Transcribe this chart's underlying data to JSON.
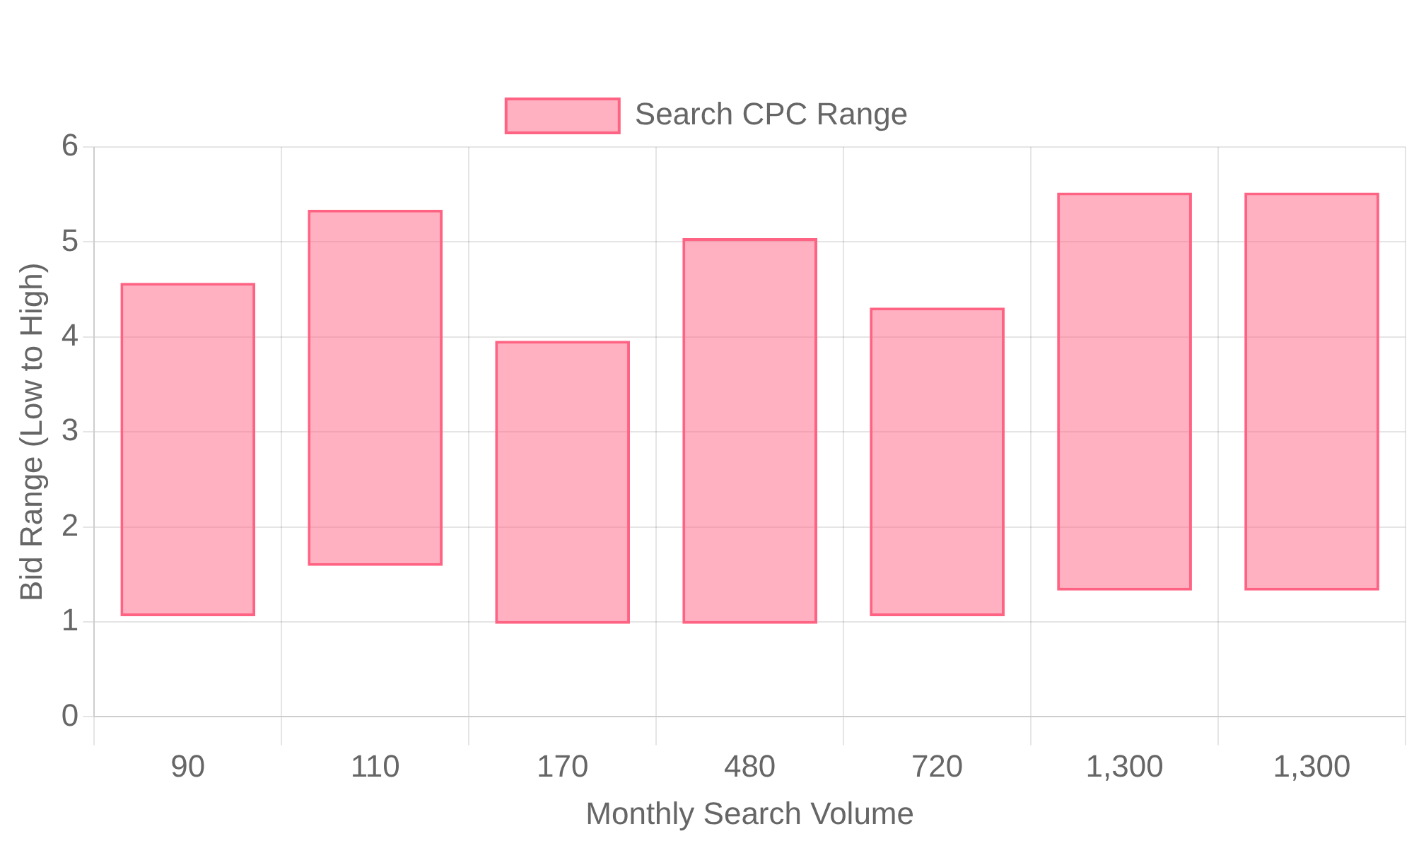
{
  "chart_data": {
    "type": "bar",
    "xlabel": "Monthly Search Volume",
    "ylabel": "Bid Range (Low to High)",
    "categories": [
      "90",
      "110",
      "170",
      "480",
      "720",
      "1,300",
      "1,300"
    ],
    "series": [
      {
        "name": "Search CPC Range",
        "color": "#ff6384",
        "values": [
          3.51,
          3.75,
          2.98,
          4.06,
          3.25,
          4.19,
          4.19
        ],
        "base": [
          1.06,
          1.59,
          0.98,
          0.98,
          1.06,
          1.33,
          1.33
        ]
      }
    ],
    "ylim": [
      0,
      6
    ],
    "yticks": [
      0,
      1,
      2,
      3,
      4,
      5,
      6
    ],
    "grid": true,
    "legend": "top"
  }
}
